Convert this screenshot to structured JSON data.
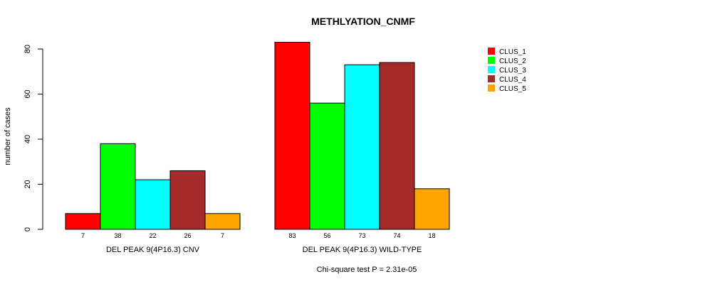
{
  "chart_data": {
    "type": "bar",
    "title": "METHLYATION_CNMF",
    "ylabel": "number of cases",
    "ylim": [
      0,
      80
    ],
    "yticks": [
      0,
      20,
      40,
      60,
      80
    ],
    "groups": [
      "DEL PEAK  9(4P16.3) CNV",
      "DEL PEAK  9(4P16.3) WILD-TYPE"
    ],
    "series": [
      {
        "name": "CLUS_1",
        "color": "#ff0000",
        "values": [
          7,
          83
        ]
      },
      {
        "name": "CLUS_2",
        "color": "#00ff00",
        "values": [
          38,
          56
        ]
      },
      {
        "name": "CLUS_3",
        "color": "#00ffff",
        "values": [
          22,
          73
        ]
      },
      {
        "name": "CLUS_4",
        "color": "#a52a2a",
        "values": [
          26,
          74
        ]
      },
      {
        "name": "CLUS_5",
        "color": "#ffa500",
        "values": [
          7,
          18
        ]
      }
    ],
    "legend_position": "top-right",
    "footer": "Chi-square test P = 2.31e-05"
  }
}
